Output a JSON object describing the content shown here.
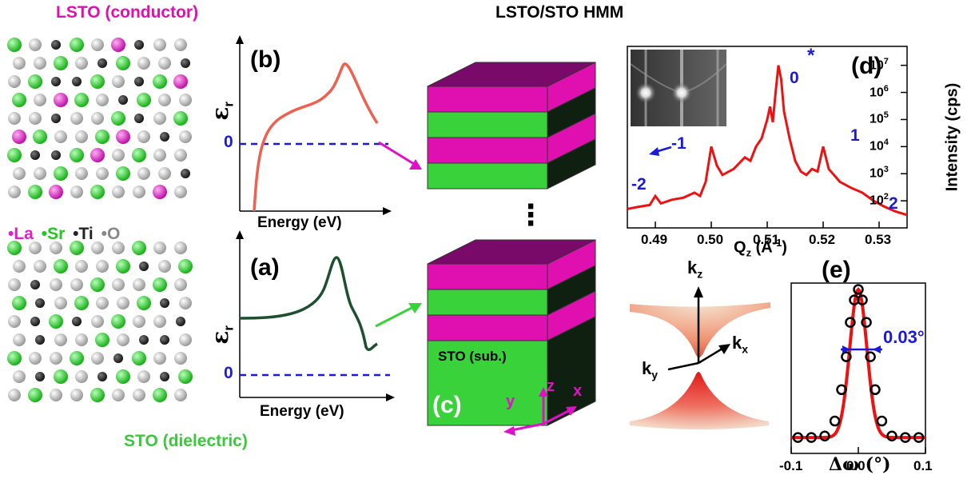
{
  "headings": {
    "lsto": "LSTO (conductor)",
    "sto": "STO (dielectric)",
    "hmm": "LSTO/STO HMM"
  },
  "legend": [
    {
      "symbol": "•",
      "label": "La",
      "color": "#e020c8"
    },
    {
      "symbol": "•",
      "label": "Sr",
      "color": "#22c822"
    },
    {
      "symbol": "•",
      "label": "Ti",
      "color": "#222222"
    },
    {
      "symbol": "•",
      "label": "O",
      "color": "#888888"
    }
  ],
  "panel_b": {
    "label": "(b)",
    "ylabel": "ε",
    "ysub": "r",
    "zero": "0",
    "xlabel": "Energy (eV)",
    "color": "#f06050"
  },
  "panel_a": {
    "label": "(a)",
    "ylabel": "ε",
    "ysub": "r",
    "zero": "0",
    "xlabel": "Energy (eV)",
    "color": "#1e5030"
  },
  "panel_c": {
    "label": "(c)",
    "substrate": "STO (sub.)",
    "ellipsis": "⋮",
    "axes": {
      "x": "x",
      "y": "y",
      "z": "z"
    },
    "colors": {
      "lsto": "#e010b0",
      "sto": "#3ad23a",
      "top": "#7a0a6a",
      "side": "#102010"
    }
  },
  "panel_d": {
    "label": "(d)",
    "xlabel": "Q",
    "xsub": "z",
    "xunit": "(Å",
    "xexp": "-1",
    "xclose": ")",
    "ylabel": "Intensity (cps)",
    "xticks": [
      "0.49",
      "0.50",
      "0.51",
      "0.52",
      "0.53"
    ],
    "yticks": [
      {
        "base": "10",
        "exp": "2"
      },
      {
        "base": "10",
        "exp": "3"
      },
      {
        "base": "10",
        "exp": "4"
      },
      {
        "base": "10",
        "exp": "5"
      },
      {
        "base": "10",
        "exp": "6"
      },
      {
        "base": "10",
        "exp": "7"
      }
    ],
    "peak_labels": [
      "-2",
      "-1",
      "0",
      "*",
      "1",
      "2"
    ],
    "line_color": "#ee1111",
    "annotation_color": "#1a1ad8"
  },
  "panel_e": {
    "label": "(e)",
    "fwhm": "0.03°",
    "xticks": [
      "-0.1",
      "0.0",
      "0.1"
    ],
    "xlabel": "Δω (°)"
  },
  "dispersion": {
    "kz": "k",
    "kz_sub": "z",
    "kx": "k",
    "kx_sub": "x",
    "ky": "k",
    "ky_sub": "y"
  },
  "chart_data": [
    {
      "type": "line",
      "xlabel": "Qz (Å-1)",
      "ylabel": "Intensity (cps)",
      "xlim": [
        0.485,
        0.535
      ],
      "ylim": [
        10,
        50000000
      ],
      "yscale": "log",
      "series": [
        {
          "x": [
            0.485,
            0.487,
            0.489,
            0.49,
            0.491,
            0.493,
            0.495,
            0.497,
            0.498,
            0.499,
            0.5,
            0.501,
            0.502,
            0.504,
            0.506,
            0.507,
            0.508,
            0.509,
            0.51,
            0.5105,
            0.511,
            0.5115,
            0.512,
            0.5125,
            0.513,
            0.514,
            0.515,
            0.516,
            0.517,
            0.518,
            0.519,
            0.52,
            0.521,
            0.523,
            0.525,
            0.527,
            0.529,
            0.531,
            0.533,
            0.535
          ],
          "y": [
            50,
            60,
            70,
            150,
            80,
            110,
            130,
            200,
            150,
            500,
            10000,
            2000,
            900,
            1500,
            4000,
            3000,
            10000,
            20000,
            100000,
            300000,
            80000,
            1000000,
            10000000,
            3000000,
            200000,
            20000,
            3000,
            1200,
            900,
            1500,
            1200,
            10000,
            1500,
            500,
            300,
            200,
            100,
            60,
            40,
            30
          ]
        }
      ]
    },
    {
      "type": "scatter",
      "xlabel": "Δω (°)",
      "xlim": [
        -0.1,
        0.1
      ],
      "series": [
        {
          "x": [
            -0.09,
            -0.07,
            -0.05,
            -0.035,
            -0.025,
            -0.018,
            -0.012,
            -0.006,
            0.0,
            0.006,
            0.012,
            0.018,
            0.025,
            0.035,
            0.05,
            0.07,
            0.09
          ],
          "y": [
            0.01,
            0.01,
            0.02,
            0.12,
            0.33,
            0.55,
            0.78,
            0.93,
            1.0,
            0.93,
            0.78,
            0.55,
            0.33,
            0.12,
            0.02,
            0.01,
            0.01
          ]
        }
      ]
    }
  ]
}
